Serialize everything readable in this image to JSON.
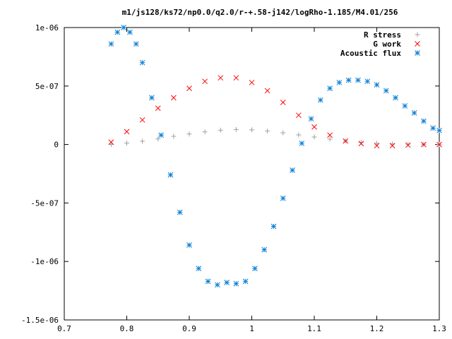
{
  "chart_data": {
    "type": "scatter",
    "title": "m1/js128/ks72/np0.0/q2.0/r-+.58-j142/logRho-1.185/M4.01/256",
    "xlabel": "",
    "ylabel": "",
    "xlim": [
      0.7,
      1.3
    ],
    "ylim": [
      -1.5e-06,
      1e-06
    ],
    "xticks": [
      0.7,
      0.8,
      0.9,
      1.0,
      1.1,
      1.2,
      1.3
    ],
    "xtick_labels": [
      "0.7",
      "0.8",
      "0.9",
      "1",
      "1.1",
      "1.2",
      "1.3"
    ],
    "yticks": [
      1e-06,
      5e-07,
      0,
      -5e-07,
      -1e-06,
      -1.5e-06
    ],
    "ytick_labels": [
      "1e-06",
      "5e-07",
      "0",
      "-5e-07",
      "-1e-06",
      "-1.5e-06"
    ],
    "grid": false,
    "legend_position": "top-right",
    "series": [
      {
        "name": "R stress",
        "marker": "plus",
        "color": "#a0a0a0",
        "x": [
          0.775,
          0.8,
          0.825,
          0.85,
          0.875,
          0.9,
          0.925,
          0.95,
          0.975,
          1.0,
          1.025,
          1.05,
          1.075,
          1.1,
          1.125,
          1.15,
          1.175,
          1.2,
          1.225,
          1.25,
          1.275,
          1.3
        ],
        "y": [
          0,
          1.2e-08,
          2.8e-08,
          4.8e-08,
          7e-08,
          9e-08,
          1.08e-07,
          1.22e-07,
          1.28e-07,
          1.25e-07,
          1.15e-07,
          1e-07,
          8.2e-08,
          6.4e-08,
          4.6e-08,
          3e-08,
          1.8e-08,
          1e-08,
          5e-09,
          2e-09,
          1e-09,
          0
        ]
      },
      {
        "name": "G work",
        "marker": "cross",
        "color": "#ff0000",
        "x": [
          0.775,
          0.8,
          0.825,
          0.85,
          0.875,
          0.9,
          0.925,
          0.95,
          0.975,
          1.0,
          1.025,
          1.05,
          1.075,
          1.1,
          1.125,
          1.15,
          1.175,
          1.2,
          1.225,
          1.25,
          1.275,
          1.3
        ],
        "y": [
          2e-08,
          1.1e-07,
          2.1e-07,
          3.1e-07,
          4e-07,
          4.8e-07,
          5.4e-07,
          5.7e-07,
          5.7e-07,
          5.3e-07,
          4.6e-07,
          3.6e-07,
          2.5e-07,
          1.5e-07,
          8e-08,
          3e-08,
          8e-09,
          -1e-08,
          -1e-08,
          -5e-09,
          0,
          0
        ]
      },
      {
        "name": "Acoustic flux",
        "marker": "star",
        "color": "#0a7fd6",
        "x": [
          0.775,
          0.785,
          0.795,
          0.805,
          0.815,
          0.825,
          0.84,
          0.855,
          0.87,
          0.885,
          0.9,
          0.915,
          0.93,
          0.945,
          0.96,
          0.975,
          0.99,
          1.005,
          1.02,
          1.035,
          1.05,
          1.065,
          1.08,
          1.095,
          1.11,
          1.125,
          1.14,
          1.155,
          1.17,
          1.185,
          1.2,
          1.215,
          1.23,
          1.245,
          1.26,
          1.275,
          1.29,
          1.3
        ],
        "y": [
          8.6e-07,
          9.6e-07,
          1e-06,
          9.6e-07,
          8.6e-07,
          7e-07,
          4e-07,
          8e-08,
          -2.6e-07,
          -5.8e-07,
          -8.6e-07,
          -1.06e-06,
          -1.17e-06,
          -1.2e-06,
          -1.18e-06,
          -1.19e-06,
          -1.17e-06,
          -1.06e-06,
          -9e-07,
          -7e-07,
          -4.6e-07,
          -2.2e-07,
          1e-08,
          2.2e-07,
          3.8e-07,
          4.8e-07,
          5.3e-07,
          5.5e-07,
          5.5e-07,
          5.4e-07,
          5.1e-07,
          4.6e-07,
          4e-07,
          3.3e-07,
          2.7e-07,
          2e-07,
          1.4e-07,
          1.2e-07
        ]
      }
    ]
  }
}
